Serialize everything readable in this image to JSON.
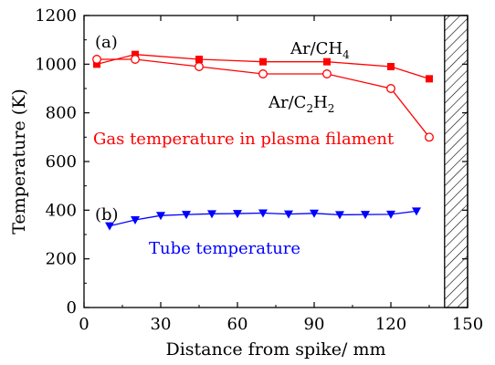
{
  "chart_data": {
    "type": "line",
    "xlabel": "Distance from spike/ mm",
    "ylabel": "Temperature (K)",
    "xlim": [
      0,
      150
    ],
    "ylim": [
      0,
      1200
    ],
    "xticks": [
      0,
      30,
      60,
      90,
      120,
      150
    ],
    "yticks": [
      0,
      200,
      400,
      600,
      800,
      1000,
      1200
    ],
    "grid": false,
    "hatched_region": {
      "x_start": 141,
      "x_end": 150
    },
    "panel_labels": [
      "(a)",
      "(b)"
    ],
    "series": [
      {
        "name": "Ar/CH4",
        "color": "#ff0000",
        "marker": "filled-square",
        "x": [
          5,
          20,
          45,
          70,
          95,
          120,
          135
        ],
        "values": [
          1000,
          1040,
          1020,
          1010,
          1010,
          990,
          940
        ]
      },
      {
        "name": "Ar/C2H2",
        "color": "#ff0000",
        "marker": "open-circle",
        "x": [
          5,
          20,
          45,
          70,
          95,
          120,
          135
        ],
        "values": [
          1020,
          1020,
          990,
          960,
          960,
          900,
          700
        ]
      },
      {
        "name": "Tube temperature",
        "color": "#0000ff",
        "marker": "filled-triangle-down",
        "x": [
          10,
          20,
          30,
          40,
          50,
          60,
          70,
          80,
          90,
          100,
          110,
          120,
          130
        ],
        "values": [
          335,
          360,
          378,
          382,
          385,
          386,
          388,
          384,
          387,
          381,
          382,
          383,
          396
        ]
      }
    ],
    "annotations": {
      "gas_label": "Gas temperature in plasma filament",
      "tube_label": "Tube temperature"
    }
  }
}
